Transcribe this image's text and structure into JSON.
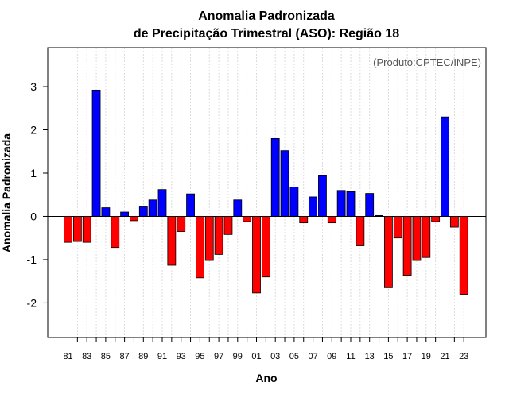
{
  "chart_data": {
    "type": "bar",
    "title": "Anomalia Padronizada",
    "subtitle": "de Precipitação Trimestral (ASO): Região 18",
    "xlabel": "Ano",
    "ylabel": "Anomalia Padronizada",
    "credit": "(Produto:CPTEC/INPE)",
    "ylim": [
      -2.8,
      3.9
    ],
    "yticks": [
      -2,
      -1,
      0,
      1,
      2,
      3
    ],
    "ytick_labels": [
      "-2",
      "-1",
      "0",
      "1",
      "2",
      "3"
    ],
    "xtick_labels": [
      "81",
      "83",
      "85",
      "87",
      "89",
      "91",
      "93",
      "95",
      "97",
      "99",
      "01",
      "03",
      "05",
      "07",
      "09",
      "11",
      "13",
      "15",
      "17",
      "19",
      "21",
      "23"
    ],
    "categories": [
      "1981",
      "1982",
      "1983",
      "1984",
      "1985",
      "1986",
      "1987",
      "1988",
      "1989",
      "1990",
      "1991",
      "1992",
      "1993",
      "1994",
      "1995",
      "1996",
      "1997",
      "1998",
      "1999",
      "2000",
      "2001",
      "2002",
      "2003",
      "2004",
      "2005",
      "2006",
      "2007",
      "2008",
      "2009",
      "2010",
      "2011",
      "2012",
      "2013",
      "2014",
      "2015",
      "2016",
      "2017",
      "2018",
      "2019",
      "2020",
      "2021",
      "2022",
      "2023"
    ],
    "values": [
      -0.6,
      -0.58,
      -0.6,
      2.92,
      0.2,
      -0.72,
      0.1,
      -0.1,
      0.22,
      0.38,
      0.62,
      -1.13,
      -0.35,
      0.52,
      -1.42,
      -1.02,
      -0.88,
      -0.42,
      0.38,
      -0.12,
      -1.77,
      -1.4,
      1.8,
      1.52,
      0.68,
      -0.15,
      0.45,
      0.94,
      -0.15,
      0.6,
      0.57,
      -0.68,
      0.53,
      0.02,
      -1.65,
      -0.5,
      -1.36,
      -1.02,
      -0.95,
      -0.12,
      2.3,
      -0.25,
      -1.8
    ],
    "colors": {
      "positive": "#0000ff",
      "negative": "#ff0000",
      "grid": "#d3d3d3"
    },
    "grid": true
  }
}
